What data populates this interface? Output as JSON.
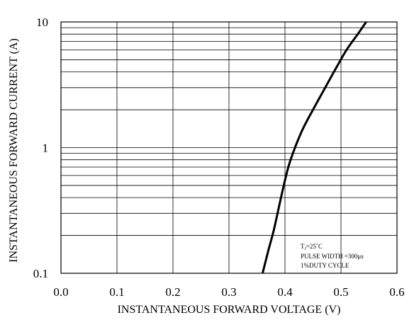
{
  "chart_data": {
    "type": "line",
    "xlabel": "INSTANTANEOUS FORWARD VOLTAGE (V)",
    "ylabel": "INSTANTANEOUS FORWARD CURRENT (A)",
    "xlim": [
      0.0,
      0.6
    ],
    "ylim": [
      0.1,
      10
    ],
    "yscale": "log",
    "grid": true,
    "x_ticks": [
      "0.0",
      "0.1",
      "0.2",
      "0.3",
      "0.4",
      "0.5",
      "0.6"
    ],
    "y_ticks": [
      "0.1",
      "1",
      "10"
    ],
    "annotation": {
      "line1_main": "T",
      "line1_sub": "J",
      "line1_rest": "=25˚C",
      "line2": "PULSE WIDTH =300μs",
      "line3": "1%DUTY CYCLE"
    },
    "series": [
      {
        "color": "#000000",
        "points": [
          [
            0.36,
            0.1
          ],
          [
            0.37,
            0.15
          ],
          [
            0.38,
            0.22
          ],
          [
            0.39,
            0.35
          ],
          [
            0.4,
            0.55
          ],
          [
            0.41,
            0.8
          ],
          [
            0.43,
            1.35
          ],
          [
            0.45,
            2.0
          ],
          [
            0.47,
            2.9
          ],
          [
            0.49,
            4.2
          ],
          [
            0.51,
            6.0
          ],
          [
            0.53,
            8.0
          ],
          [
            0.545,
            10.0
          ]
        ]
      }
    ]
  }
}
